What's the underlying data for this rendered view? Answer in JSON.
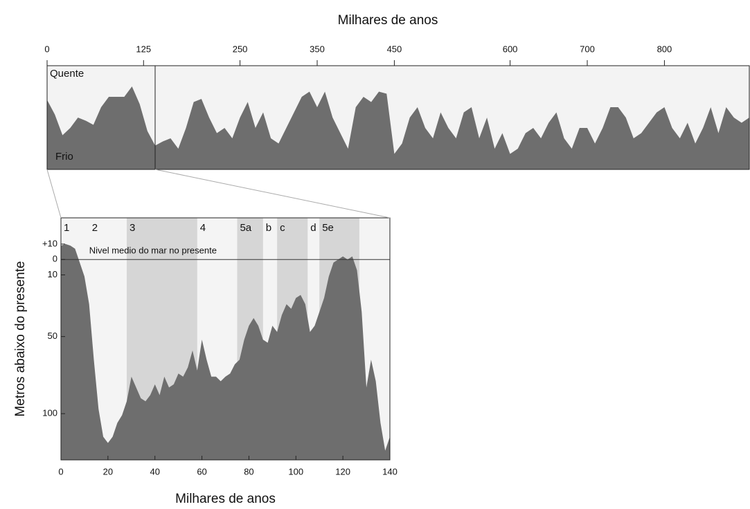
{
  "chart_data": [
    {
      "type": "area",
      "xlabel": "Milhares de anos",
      "label_top": "Quente",
      "label_bottom": "Frio",
      "xlim": [
        0,
        910
      ],
      "xticks": [
        0,
        125,
        250,
        350,
        450,
        600,
        700,
        800
      ],
      "ylim": [
        0,
        10
      ],
      "color": "#6e6e6e",
      "x": [
        0,
        10,
        20,
        30,
        40,
        50,
        60,
        70,
        80,
        90,
        100,
        110,
        120,
        130,
        140,
        150,
        160,
        170,
        180,
        190,
        200,
        210,
        220,
        230,
        240,
        250,
        260,
        270,
        280,
        290,
        300,
        310,
        320,
        330,
        340,
        350,
        360,
        370,
        380,
        390,
        400,
        410,
        420,
        430,
        440,
        450,
        460,
        470,
        480,
        490,
        500,
        510,
        520,
        530,
        540,
        550,
        560,
        570,
        580,
        590,
        600,
        610,
        620,
        630,
        640,
        650,
        660,
        670,
        680,
        690,
        700,
        710,
        720,
        730,
        740,
        750,
        760,
        770,
        780,
        790,
        800,
        810,
        820,
        830,
        840,
        850,
        860,
        870,
        880,
        890,
        900,
        910
      ],
      "values": [
        6.7,
        5.3,
        3.3,
        4,
        5,
        4.7,
        4.3,
        6,
        7,
        7,
        7,
        8,
        6.3,
        3.7,
        2.3,
        2.7,
        3,
        2,
        4,
        6.5,
        6.8,
        5,
        3.5,
        4,
        3,
        5,
        6.5,
        4,
        5.5,
        3,
        2.5,
        4,
        5.5,
        7,
        7.5,
        6,
        7.5,
        5,
        3.5,
        2,
        6,
        7,
        6.5,
        7.5,
        7.3,
        1.5,
        2.5,
        5,
        6,
        4,
        3,
        5.5,
        4,
        3,
        5.5,
        6,
        3,
        5,
        2,
        3.5,
        1.5,
        2,
        3.5,
        4,
        3,
        4.5,
        5.5,
        3,
        2,
        4,
        4,
        2.5,
        4,
        6,
        6,
        5,
        3,
        3.5,
        4.5,
        5.5,
        6,
        4,
        3,
        4.5,
        2.5,
        4,
        6,
        3.5,
        6,
        5,
        4.5,
        5
      ]
    },
    {
      "type": "area",
      "xlabel": "Milhares de anos",
      "ylabel": "Metros abaixo do presente",
      "xlim": [
        0,
        140
      ],
      "xticks": [
        0,
        20,
        40,
        60,
        80,
        100,
        120,
        140
      ],
      "ylim": [
        130,
        -27
      ],
      "yticks": [
        {
          "value": -10,
          "label": "+10"
        },
        0,
        10,
        50,
        100
      ],
      "color": "#6e6e6e",
      "annotation": {
        "text": "Nivel medio do mar no presente",
        "value": 0
      },
      "stages": [
        {
          "label": "1",
          "start": 0,
          "end": 12,
          "shaded": false
        },
        {
          "label": "2",
          "start": 12,
          "end": 28,
          "shaded": false
        },
        {
          "label": "3",
          "start": 28,
          "end": 58,
          "shaded": true
        },
        {
          "label": "4",
          "start": 58,
          "end": 75,
          "shaded": false
        },
        {
          "label": "5a",
          "start": 75,
          "end": 86,
          "shaded": true
        },
        {
          "label": "b",
          "start": 86,
          "end": 92,
          "shaded": false
        },
        {
          "label": "c",
          "start": 92,
          "end": 105,
          "shaded": true
        },
        {
          "label": "d",
          "start": 105,
          "end": 110,
          "shaded": false
        },
        {
          "label": "5e",
          "start": 110,
          "end": 127,
          "shaded": true
        }
      ],
      "x": [
        0,
        2,
        4,
        6,
        8,
        10,
        12,
        14,
        16,
        18,
        20,
        22,
        24,
        26,
        28,
        30,
        32,
        34,
        36,
        38,
        40,
        42,
        44,
        46,
        48,
        50,
        52,
        54,
        56,
        58,
        60,
        62,
        64,
        66,
        68,
        70,
        72,
        74,
        76,
        78,
        80,
        82,
        84,
        86,
        88,
        90,
        92,
        94,
        96,
        98,
        100,
        102,
        104,
        106,
        108,
        110,
        112,
        114,
        116,
        118,
        120,
        122,
        124,
        126,
        128,
        130,
        132,
        134,
        136,
        138,
        140
      ],
      "values": [
        -9,
        -10,
        -9,
        -7,
        2,
        11,
        29,
        65,
        97,
        115,
        119,
        115,
        106,
        101,
        92,
        76,
        83,
        90,
        92,
        88,
        81,
        88,
        76,
        83,
        81,
        74,
        76,
        70,
        59,
        72,
        52,
        65,
        76,
        76,
        79,
        76,
        74,
        68,
        65,
        52,
        43,
        38,
        43,
        52,
        54,
        43,
        47,
        36,
        29,
        32,
        25,
        23,
        29,
        47,
        43,
        34,
        25,
        11,
        2,
        0,
        -2,
        0,
        -2,
        7,
        34,
        83,
        65,
        79,
        106,
        124,
        115
      ]
    }
  ]
}
